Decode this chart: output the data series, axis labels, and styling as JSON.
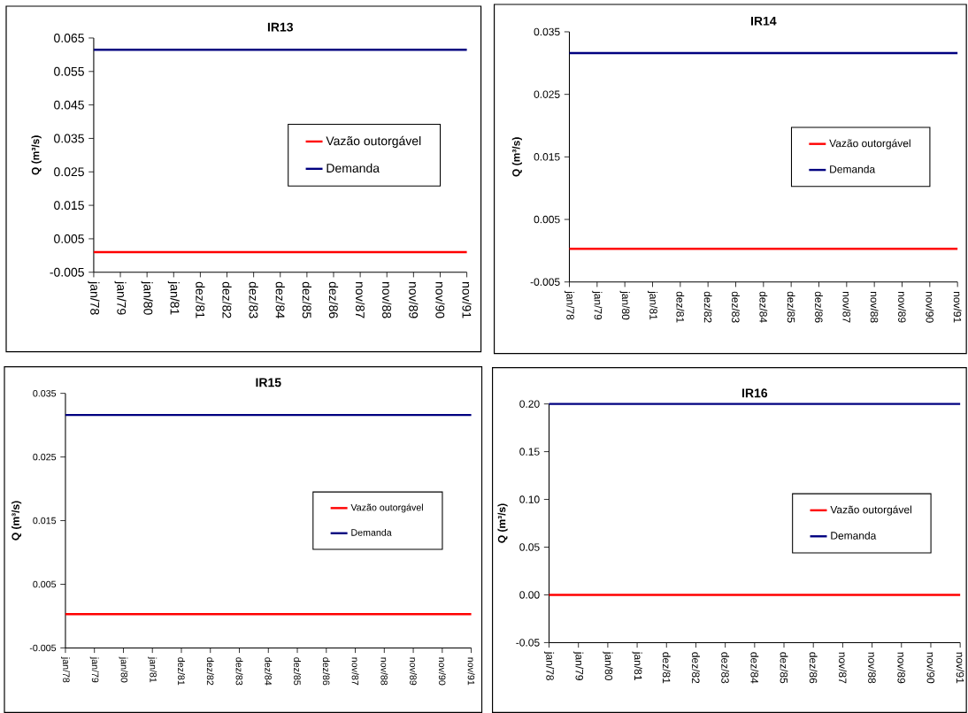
{
  "chart_data": [
    {
      "type": "line",
      "title": "IR13",
      "ylabel": "Q (m³/s)",
      "categories": [
        "jan/78",
        "jan/79",
        "jan/80",
        "jan/81",
        "dez/81",
        "dez/82",
        "dez/83",
        "dez/84",
        "dez/85",
        "dez/86",
        "nov/87",
        "nov/88",
        "nov/89",
        "nov/90",
        "nov/91"
      ],
      "series": [
        {
          "name": "Vazão outorgável",
          "color": "#ff0000",
          "values": [
            0.001,
            0.001,
            0.001,
            0.001,
            0.001,
            0.001,
            0.001,
            0.001,
            0.001,
            0.001,
            0.001,
            0.001,
            0.001,
            0.001,
            0.001
          ]
        },
        {
          "name": "Demanda",
          "color": "#000080",
          "values": [
            0.0615,
            0.0615,
            0.0615,
            0.0615,
            0.0615,
            0.0615,
            0.0615,
            0.0615,
            0.0615,
            0.0615,
            0.0615,
            0.0615,
            0.0615,
            0.0615,
            0.0615
          ]
        }
      ],
      "ylim": [
        -0.005,
        0.065
      ],
      "yticks": [
        -0.005,
        0.005,
        0.015,
        0.025,
        0.035,
        0.045,
        0.055,
        0.065
      ],
      "legend": "right"
    },
    {
      "type": "line",
      "title": "IR14",
      "ylabel": "Q (m³/s)",
      "categories": [
        "jan/78",
        "jan/79",
        "jan/80",
        "jan/81",
        "dez/81",
        "dez/82",
        "dez/83",
        "dez/84",
        "dez/85",
        "dez/86",
        "nov/87",
        "nov/88",
        "nov/89",
        "nov/90",
        "nov/91"
      ],
      "series": [
        {
          "name": "Vazão outorgável",
          "color": "#ff0000",
          "values": [
            0.0003,
            0.0003,
            0.0003,
            0.0003,
            0.0003,
            0.0003,
            0.0003,
            0.0003,
            0.0003,
            0.0003,
            0.0003,
            0.0003,
            0.0003,
            0.0003,
            0.0003
          ]
        },
        {
          "name": "Demanda",
          "color": "#000080",
          "values": [
            0.0316,
            0.0316,
            0.0316,
            0.0316,
            0.0316,
            0.0316,
            0.0316,
            0.0316,
            0.0316,
            0.0316,
            0.0316,
            0.0316,
            0.0316,
            0.0316,
            0.0316
          ]
        }
      ],
      "ylim": [
        -0.005,
        0.035
      ],
      "yticks": [
        -0.005,
        0.005,
        0.015,
        0.025,
        0.035
      ],
      "legend": "right"
    },
    {
      "type": "line",
      "title": "IR15",
      "ylabel": "Q (m³/s)",
      "categories": [
        "jan/78",
        "jan/79",
        "jan/80",
        "jan/81",
        "dez/81",
        "dez/82",
        "dez/83",
        "dez/84",
        "dez/85",
        "dez/86",
        "nov/87",
        "nov/88",
        "nov/89",
        "nov/90",
        "nov/91"
      ],
      "series": [
        {
          "name": "Vazão outorgável",
          "color": "#ff0000",
          "values": [
            0.0003,
            0.0003,
            0.0003,
            0.0003,
            0.0003,
            0.0003,
            0.0003,
            0.0003,
            0.0003,
            0.0003,
            0.0003,
            0.0003,
            0.0003,
            0.0003,
            0.0003
          ]
        },
        {
          "name": "Demanda",
          "color": "#000080",
          "values": [
            0.0316,
            0.0316,
            0.0316,
            0.0316,
            0.0316,
            0.0316,
            0.0316,
            0.0316,
            0.0316,
            0.0316,
            0.0316,
            0.0316,
            0.0316,
            0.0316,
            0.0316
          ]
        }
      ],
      "ylim": [
        -0.005,
        0.035
      ],
      "yticks": [
        -0.005,
        0.005,
        0.015,
        0.025,
        0.035
      ],
      "legend": "right"
    },
    {
      "type": "line",
      "title": "IR16",
      "ylabel": "Q (m³/s)",
      "categories": [
        "jan/78",
        "jan/79",
        "jan/80",
        "jan/81",
        "dez/81",
        "dez/82",
        "dez/83",
        "dez/84",
        "dez/85",
        "dez/86",
        "nov/87",
        "nov/88",
        "nov/89",
        "nov/90",
        "nov/91"
      ],
      "series": [
        {
          "name": "Vazão outorgável",
          "color": "#ff0000",
          "values": [
            0,
            0,
            0,
            0,
            0,
            0,
            0,
            0,
            0,
            0,
            0,
            0,
            0,
            0,
            0
          ]
        },
        {
          "name": "Demanda",
          "color": "#000080",
          "values": [
            0.2,
            0.2,
            0.2,
            0.2,
            0.2,
            0.2,
            0.2,
            0.2,
            0.2,
            0.2,
            0.2,
            0.2,
            0.2,
            0.2,
            0.2
          ]
        }
      ],
      "ylim": [
        -0.05,
        0.2
      ],
      "yticks": [
        {
          "value": -0.05,
          "label": "-0.05"
        },
        {
          "value": 0,
          "label": "0.00"
        },
        {
          "value": 0.05,
          "label": "0.05"
        },
        {
          "value": 0.1,
          "label": "0.10"
        },
        {
          "value": 0.15,
          "label": "0.15"
        },
        {
          "value": 0.2,
          "label": "0.20"
        }
      ],
      "legend": "right"
    }
  ]
}
